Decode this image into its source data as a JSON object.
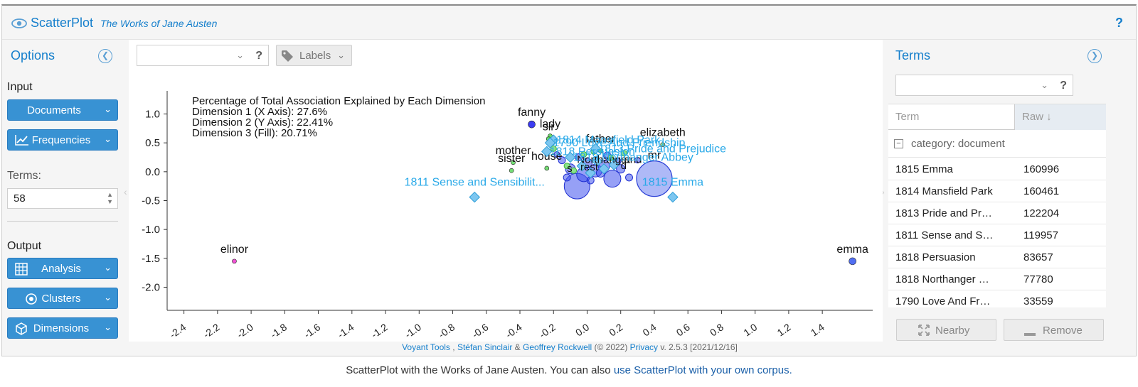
{
  "header": {
    "title": "ScatterPlot",
    "subtitle": "The Works of Jane Austen",
    "help": "?"
  },
  "options": {
    "title": "Options",
    "input_label": "Input",
    "documents_btn": "Documents",
    "frequencies_btn": "Frequencies",
    "terms_label": "Terms:",
    "terms_value": "58",
    "output_label": "Output",
    "analysis_btn": "Analysis",
    "clusters_btn": "Clusters",
    "dimensions_btn": "Dimensions"
  },
  "toolbar": {
    "combo_help": "?",
    "labels_btn": "Labels"
  },
  "chart_data": {
    "type": "scatter",
    "xlim": [
      -2.5,
      1.7
    ],
    "ylim": [
      -2.4,
      1.4
    ],
    "xticks": [
      "-2.4",
      "-2.2",
      "-2.0",
      "-1.8",
      "-1.6",
      "-1.4",
      "-1.2",
      "-1.0",
      "-0.8",
      "-0.6",
      "-0.4",
      "-0.2",
      "0.0",
      "0.2",
      "0.4",
      "0.6",
      "0.8",
      "1.0",
      "1.2",
      "1.4"
    ],
    "yticks": [
      "1.0",
      "0.5",
      "0.0",
      "-0.5",
      "-1.0",
      "-1.5",
      "-2.0"
    ],
    "annotation": [
      "Percentage of Total Association Explained by Each Dimension",
      "Dimension 1 (X Axis): 27.6%",
      "Dimension 2 (Y Axis): 22.41%",
      "Dimension 3 (Fill): 20.71%"
    ],
    "terms": [
      {
        "label": "fanny",
        "x": -0.33,
        "y": 0.82,
        "r": 5,
        "color": "#1a1aee"
      },
      {
        "label": "lady",
        "x": -0.22,
        "y": 0.62,
        "r": 3,
        "color": "#4bd44b"
      },
      {
        "label": "sir",
        "x": -0.23,
        "y": 0.57,
        "r": 3,
        "color": "#4bd44b"
      },
      {
        "label": "elizabeth",
        "x": 0.45,
        "y": 0.47,
        "r": 3,
        "color": "#7ee07e"
      },
      {
        "label": "mother",
        "x": -0.44,
        "y": 0.16,
        "r": 3,
        "color": "#5cd65c"
      },
      {
        "label": "sister",
        "x": -0.45,
        "y": 0.02,
        "r": 3,
        "color": "#5cd65c"
      },
      {
        "label": "house",
        "x": -0.24,
        "y": 0.06,
        "r": 3,
        "color": "#5cd65c"
      },
      {
        "label": "father",
        "x": 0.08,
        "y": 0.36,
        "r": 3,
        "color": "#4bd44b"
      },
      {
        "label": "mr",
        "x": 0.4,
        "y": -0.12,
        "r": 25,
        "color": "#6b7ff0"
      },
      {
        "label": "elinor",
        "x": -2.1,
        "y": -1.55,
        "r": 3,
        "color": "#ee33cc"
      },
      {
        "label": "emma",
        "x": 1.58,
        "y": -1.55,
        "r": 5,
        "color": "#3355ee"
      }
    ],
    "documents": [
      {
        "label": "1811 Sense and Sensibilit...",
        "x": -0.67,
        "y": -0.44
      },
      {
        "label": "1815 Emma",
        "x": 0.51,
        "y": -0.44
      },
      {
        "label": "1814 Mansfield Park",
        "x": -0.2,
        "y": 0.55
      },
      {
        "label": "1790 Love And Friendship",
        "x": -0.22,
        "y": 0.5
      },
      {
        "label": "1813 Pride and Prejudice",
        "x": 0.05,
        "y": 0.4
      },
      {
        "label": "1818 Persuasion",
        "x": -0.24,
        "y": 0.35
      },
      {
        "label": "1818 Northanger Abbey",
        "x": -0.1,
        "y": 0.25
      }
    ],
    "cluster_words": [
      "Northanger",
      "and",
      "rest",
      "d",
      "s"
    ]
  },
  "terms_panel": {
    "title": "Terms",
    "search_help": "?",
    "col_term": "Term",
    "col_raw": "Raw ↓",
    "group": "category: document",
    "rows": [
      {
        "term": "1815 Emma",
        "raw": "160996"
      },
      {
        "term": "1814 Mansfield Park",
        "raw": "160461"
      },
      {
        "term": "1813 Pride and Pr…",
        "raw": "122204"
      },
      {
        "term": "1811 Sense and S…",
        "raw": "119957"
      },
      {
        "term": "1818 Persuasion",
        "raw": "83657"
      },
      {
        "term": "1818 Northanger …",
        "raw": "77780"
      },
      {
        "term": "1790 Love And Fr…",
        "raw": "33559"
      }
    ],
    "nearby_btn": "Nearby",
    "remove_btn": "Remove"
  },
  "footer": {
    "voyant": "Voyant Tools",
    "sep1": " , ",
    "author1": "Stéfan Sinclair",
    "amp": " & ",
    "author2": "Geoffrey Rockwell",
    "year": " (© 2022) ",
    "privacy": "Privacy",
    "version": " v. 2.5.3 [2021/12/16]"
  },
  "caption": {
    "text": "ScatterPlot with the Works of Jane Austen. You can also ",
    "link": "use ScatterPlot with your own corpus."
  },
  "colors": {
    "accent": "#157fcc",
    "button_blue": "#3892d3",
    "doc_label": "#29a9e8"
  }
}
